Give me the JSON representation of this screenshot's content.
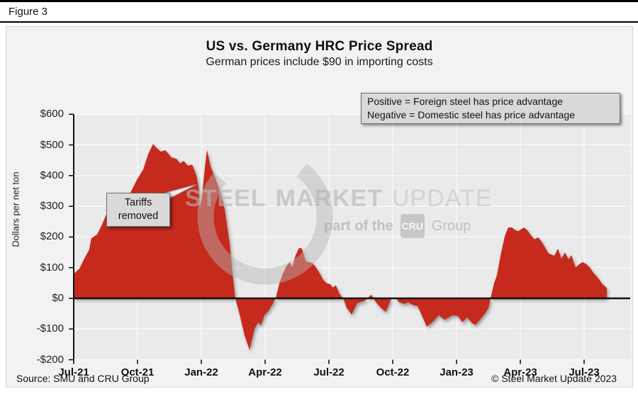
{
  "figure_label": "Figure 3",
  "title": "US vs. Germany HRC Price Spread",
  "subtitle": "German prices include $90 in importing costs",
  "note_box": {
    "line1": "Positive = Foreign steel has price advantage",
    "line2": "Negative = Domestic steel has price advantage"
  },
  "annotation": {
    "line1": "Tariffs",
    "line2": "removed"
  },
  "watermark": {
    "word1": "STEEL",
    "word2": "MARKET",
    "word3": "UPDATE",
    "tagline_prefix": "part of the",
    "tagline_box": "CRU",
    "tagline_suffix": "Group"
  },
  "footer": {
    "source": "Source: SMU and CRU Group",
    "copyright": "© Steel Market Update 2023"
  },
  "colors": {
    "area": "#c62a1c",
    "plot_bg": "#eaeaea",
    "panel_bg": "#f2f2f2",
    "gridline": "#f9f9f9",
    "axis": "#111111",
    "box_bg": "#d9d9d9",
    "box_border": "#6f6f6f"
  },
  "chart_data": {
    "type": "area",
    "title": "US vs. Germany HRC Price Spread",
    "subtitle": "German prices include $90 in importing costs",
    "ylabel": "Dollars per net ton",
    "ylim": [
      -200,
      600
    ],
    "grid": true,
    "x_unit": "months since Jul-2021 (weekly spread series)",
    "y_ticks": [
      {
        "label": "$600",
        "value": 600
      },
      {
        "label": "$500",
        "value": 500
      },
      {
        "label": "$400",
        "value": 400
      },
      {
        "label": "$300",
        "value": 300
      },
      {
        "label": "$200",
        "value": 200
      },
      {
        "label": "$100",
        "value": 100
      },
      {
        "label": "$0",
        "value": 0
      },
      {
        "label": "-$100",
        "value": -100
      },
      {
        "label": "-$200",
        "value": -200
      }
    ],
    "x_ticks": [
      {
        "label": "Jul-21",
        "month": 0
      },
      {
        "label": "Oct-21",
        "month": 3
      },
      {
        "label": "Jan-22",
        "month": 6
      },
      {
        "label": "Apr-22",
        "month": 9
      },
      {
        "label": "Jul-22",
        "month": 12
      },
      {
        "label": "Oct-22",
        "month": 15
      },
      {
        "label": "Jan-23",
        "month": 18
      },
      {
        "label": "Apr-23",
        "month": 21
      },
      {
        "label": "Jul-23",
        "month": 24
      }
    ],
    "annotation_anchor": {
      "month": 6.0,
      "value": 290
    },
    "points": [
      [
        0,
        80
      ],
      [
        0.27,
        97
      ],
      [
        0.5,
        130
      ],
      [
        0.73,
        159
      ],
      [
        0.83,
        196
      ],
      [
        1.1,
        208
      ],
      [
        1.33,
        240
      ],
      [
        1.6,
        285
      ],
      [
        1.83,
        300
      ],
      [
        2,
        312
      ],
      [
        2.17,
        305
      ],
      [
        2.4,
        320
      ],
      [
        2.67,
        345
      ],
      [
        3,
        390
      ],
      [
        3.27,
        420
      ],
      [
        3.5,
        470
      ],
      [
        3.73,
        503
      ],
      [
        3.9,
        490
      ],
      [
        4.1,
        478
      ],
      [
        4.3,
        483
      ],
      [
        4.6,
        459
      ],
      [
        4.83,
        455
      ],
      [
        5,
        440
      ],
      [
        5.17,
        448
      ],
      [
        5.37,
        432
      ],
      [
        5.57,
        436
      ],
      [
        5.77,
        400
      ],
      [
        5.87,
        362
      ],
      [
        5.93,
        290
      ],
      [
        6.03,
        330
      ],
      [
        6.17,
        430
      ],
      [
        6.27,
        484
      ],
      [
        6.43,
        430
      ],
      [
        6.67,
        390
      ],
      [
        6.9,
        344
      ],
      [
        7.1,
        290
      ],
      [
        7.33,
        180
      ],
      [
        7.5,
        60
      ],
      [
        7.6,
        0
      ],
      [
        7.83,
        -60
      ],
      [
        8.03,
        -120
      ],
      [
        8.27,
        -168
      ],
      [
        8.5,
        -100
      ],
      [
        8.67,
        -78
      ],
      [
        8.8,
        -88
      ],
      [
        8.97,
        -55
      ],
      [
        9.17,
        -40
      ],
      [
        9.33,
        -20
      ],
      [
        9.5,
        0
      ],
      [
        9.67,
        49
      ],
      [
        9.83,
        80
      ],
      [
        10,
        105
      ],
      [
        10.17,
        118
      ],
      [
        10.27,
        100
      ],
      [
        10.43,
        140
      ],
      [
        10.6,
        165
      ],
      [
        10.73,
        162
      ],
      [
        10.9,
        122
      ],
      [
        11.07,
        118
      ],
      [
        11.23,
        115
      ],
      [
        11.4,
        100
      ],
      [
        11.57,
        81
      ],
      [
        11.73,
        60
      ],
      [
        11.9,
        49
      ],
      [
        12.07,
        46
      ],
      [
        12.17,
        35
      ],
      [
        12.33,
        42
      ],
      [
        12.5,
        14
      ],
      [
        12.67,
        0
      ],
      [
        12.83,
        -30
      ],
      [
        13.07,
        -53
      ],
      [
        13.33,
        -16
      ],
      [
        13.67,
        -9
      ],
      [
        14,
        12
      ],
      [
        14.17,
        -9
      ],
      [
        14.43,
        -30
      ],
      [
        14.67,
        -44
      ],
      [
        14.93,
        -2
      ],
      [
        15.1,
        2
      ],
      [
        15.33,
        -14
      ],
      [
        15.57,
        -18
      ],
      [
        15.73,
        -13
      ],
      [
        15.93,
        -21
      ],
      [
        16.17,
        -25
      ],
      [
        16.4,
        -60
      ],
      [
        16.6,
        -92
      ],
      [
        16.83,
        -80
      ],
      [
        17.17,
        -55
      ],
      [
        17.43,
        -70
      ],
      [
        17.83,
        -55
      ],
      [
        18.07,
        -58
      ],
      [
        18.27,
        -78
      ],
      [
        18.5,
        -62
      ],
      [
        18.73,
        -81
      ],
      [
        18.9,
        -86
      ],
      [
        19.1,
        -70
      ],
      [
        19.33,
        -50
      ],
      [
        19.5,
        -32
      ],
      [
        19.6,
        0
      ],
      [
        19.77,
        50
      ],
      [
        19.9,
        76
      ],
      [
        20.07,
        139
      ],
      [
        20.27,
        203
      ],
      [
        20.43,
        231
      ],
      [
        20.6,
        231
      ],
      [
        20.77,
        222
      ],
      [
        20.9,
        219
      ],
      [
        21.03,
        225
      ],
      [
        21.17,
        231
      ],
      [
        21.33,
        222
      ],
      [
        21.5,
        205
      ],
      [
        21.67,
        192
      ],
      [
        21.83,
        199
      ],
      [
        22,
        185
      ],
      [
        22.17,
        165
      ],
      [
        22.33,
        146
      ],
      [
        22.6,
        139
      ],
      [
        22.77,
        162
      ],
      [
        22.93,
        130
      ],
      [
        23.1,
        150
      ],
      [
        23.27,
        127
      ],
      [
        23.4,
        141
      ],
      [
        23.6,
        100
      ],
      [
        23.77,
        111
      ],
      [
        23.93,
        118
      ],
      [
        24.1,
        112
      ],
      [
        24.27,
        100
      ],
      [
        24.43,
        84
      ],
      [
        24.67,
        65
      ],
      [
        24.83,
        49
      ],
      [
        25.07,
        33
      ]
    ]
  }
}
